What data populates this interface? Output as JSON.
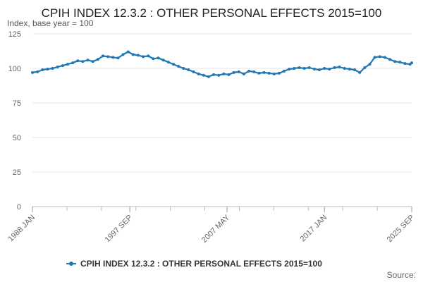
{
  "chart_data": {
    "type": "line",
    "title": "CPIH INDEX 12.3.2 : OTHER PERSONAL EFFECTS 2015=100",
    "subtitle": "Index, base year = 100",
    "ylabel": "Index, base year = 100",
    "xlabel": "",
    "ylim": [
      0,
      125
    ],
    "y_ticks": [
      0,
      25,
      50,
      75,
      100,
      125
    ],
    "x_range": [
      1988.0,
      2025.67
    ],
    "x_ticks": [
      {
        "label": "1988 JAN",
        "x": 1988.0
      },
      {
        "label": "1997 SEP",
        "x": 1997.67
      },
      {
        "label": "2007 MAY",
        "x": 2007.33
      },
      {
        "label": "2017 JAN",
        "x": 2017.0
      },
      {
        "label": "2025 SEP",
        "x": 2025.67
      }
    ],
    "legend_position": "bottom-center",
    "grid": true,
    "series": [
      {
        "name": "CPIH INDEX 12.3.2 : OTHER PERSONAL EFFECTS 2015=100",
        "color": "#1f77b4",
        "x": [
          1988.0,
          1988.5,
          1989.0,
          1989.5,
          1990.0,
          1990.5,
          1991.0,
          1991.5,
          1992.0,
          1992.5,
          1993.0,
          1993.5,
          1994.0,
          1994.5,
          1995.0,
          1995.5,
          1996.0,
          1996.5,
          1997.0,
          1997.5,
          1998.0,
          1998.5,
          1999.0,
          1999.5,
          2000.0,
          2000.5,
          2001.0,
          2001.5,
          2002.0,
          2002.5,
          2003.0,
          2003.5,
          2004.0,
          2004.5,
          2005.0,
          2005.5,
          2006.0,
          2006.5,
          2007.0,
          2007.5,
          2008.0,
          2008.5,
          2009.0,
          2009.5,
          2010.0,
          2010.5,
          2011.0,
          2011.5,
          2012.0,
          2012.5,
          2013.0,
          2013.5,
          2014.0,
          2014.5,
          2015.0,
          2015.5,
          2016.0,
          2016.5,
          2017.0,
          2017.5,
          2018.0,
          2018.5,
          2019.0,
          2019.5,
          2020.0,
          2020.5,
          2021.0,
          2021.5,
          2022.0,
          2022.5,
          2023.0,
          2023.5,
          2024.0,
          2024.5,
          2025.0,
          2025.5,
          2025.67
        ],
        "values": [
          97,
          97.5,
          99,
          99.5,
          100,
          101,
          102,
          103,
          104,
          105.5,
          105,
          106,
          105,
          106.5,
          109,
          108.5,
          108,
          107.5,
          110,
          112,
          110,
          109.5,
          108.5,
          109,
          107,
          107.5,
          106,
          104.5,
          103,
          101.5,
          100,
          99,
          97.5,
          96,
          95,
          94,
          95.5,
          95,
          96,
          95.5,
          97,
          97.5,
          96,
          98,
          97.5,
          96.5,
          97,
          96.5,
          96,
          96.5,
          98,
          99.5,
          100,
          100.5,
          100,
          100.5,
          99.5,
          99,
          100,
          99.5,
          100.5,
          101,
          100,
          99.5,
          99,
          97,
          100.5,
          103,
          108,
          108.5,
          108,
          106.5,
          105,
          104.5,
          103.5,
          103,
          104
        ]
      }
    ],
    "legend": [
      "CPIH INDEX 12.3.2 : OTHER PERSONAL EFFECTS 2015=100"
    ],
    "source_label": "Source:"
  }
}
